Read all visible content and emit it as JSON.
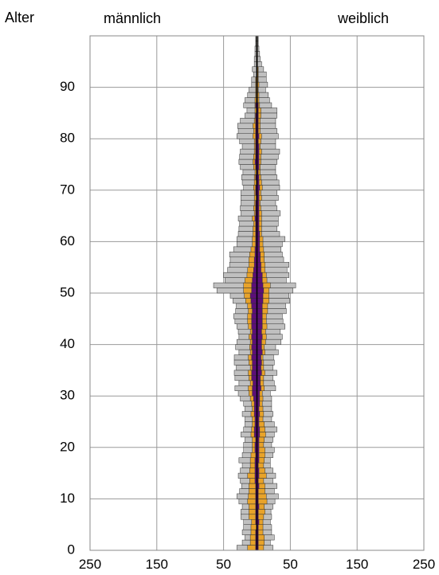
{
  "chart_data": {
    "type": "population-pyramid",
    "y_title": "Alter",
    "left_title": "männlich",
    "right_title": "weiblich",
    "x_tick_labels": [
      "250",
      "150",
      "50",
      "50",
      "150",
      "250"
    ],
    "y_tick_labels": [
      "0",
      "10",
      "20",
      "30",
      "40",
      "50",
      "60",
      "70",
      "80",
      "90"
    ],
    "xlim": [
      -250,
      250
    ],
    "ylim": [
      0,
      100
    ],
    "x_gridlines": [
      -250,
      -150,
      -50,
      0,
      50,
      150,
      250
    ],
    "y_gridlines": [
      0,
      10,
      20,
      30,
      40,
      50,
      60,
      70,
      80,
      90,
      100
    ],
    "grid": true,
    "colors": {
      "total": "#c0c0c0",
      "middle": "#e8a32a",
      "inner": "#5b0f78",
      "outline": "#333333"
    },
    "ages": [
      0,
      1,
      2,
      3,
      4,
      5,
      6,
      7,
      8,
      9,
      10,
      11,
      12,
      13,
      14,
      15,
      16,
      17,
      18,
      19,
      20,
      21,
      22,
      23,
      24,
      25,
      26,
      27,
      28,
      29,
      30,
      31,
      32,
      33,
      34,
      35,
      36,
      37,
      38,
      39,
      40,
      41,
      42,
      43,
      44,
      45,
      46,
      47,
      48,
      49,
      50,
      51,
      52,
      53,
      54,
      55,
      56,
      57,
      58,
      59,
      60,
      61,
      62,
      63,
      64,
      65,
      66,
      67,
      68,
      69,
      70,
      71,
      72,
      73,
      74,
      75,
      76,
      77,
      78,
      79,
      80,
      81,
      82,
      83,
      84,
      85,
      86,
      87,
      88,
      89,
      90,
      91,
      92,
      93,
      94,
      95,
      96,
      97,
      98,
      99
    ],
    "series": [
      {
        "side": "male",
        "outer": [
          30,
          22,
          18,
          22,
          20,
          20,
          24,
          24,
          22,
          27,
          30,
          26,
          23,
          25,
          28,
          25,
          22,
          27,
          22,
          20,
          20,
          18,
          24,
          20,
          18,
          18,
          22,
          18,
          20,
          25,
          28,
          33,
          27,
          33,
          34,
          31,
          34,
          34,
          27,
          32,
          30,
          27,
          28,
          30,
          33,
          35,
          32,
          31,
          36,
          40,
          60,
          65,
          48,
          50,
          44,
          41,
          40,
          41,
          35,
          30,
          30,
          28,
          27,
          26,
          28,
          24,
          25,
          24,
          24,
          24,
          20,
          22,
          23,
          21,
          25,
          27,
          26,
          25,
          22,
          26,
          30,
          28,
          29,
          25,
          18,
          15,
          20,
          18,
          14,
          12,
          8,
          8,
          5,
          7,
          4,
          4,
          3,
          3,
          2,
          2
        ],
        "middle": [
          14,
          10,
          10,
          9,
          9,
          8,
          12,
          12,
          12,
          14,
          13,
          12,
          12,
          11,
          14,
          11,
          10,
          10,
          9,
          7,
          7,
          7,
          9,
          8,
          7,
          7,
          9,
          7,
          8,
          10,
          12,
          13,
          10,
          12,
          13,
          10,
          12,
          13,
          10,
          11,
          10,
          12,
          10,
          13,
          14,
          14,
          13,
          14,
          17,
          19,
          20,
          20,
          18,
          15,
          14,
          12,
          12,
          11,
          9,
          7,
          7,
          6,
          6,
          5,
          7,
          4,
          5,
          4,
          4,
          4,
          5,
          4,
          4,
          3,
          5,
          6,
          5,
          4,
          4,
          4,
          6,
          5,
          6,
          4,
          3,
          3,
          3,
          3,
          2,
          2,
          2,
          2,
          1,
          1,
          1,
          1,
          1,
          1,
          1,
          1
        ],
        "inner": [
          2,
          2,
          2,
          2,
          1,
          2,
          2,
          2,
          2,
          2,
          2,
          2,
          2,
          3,
          3,
          3,
          3,
          3,
          2,
          3,
          3,
          2,
          4,
          4,
          3,
          3,
          4,
          4,
          4,
          5,
          7,
          7,
          6,
          8,
          8,
          7,
          7,
          8,
          7,
          8,
          7,
          8,
          7,
          8,
          8,
          8,
          7,
          8,
          9,
          10,
          8,
          8,
          7,
          6,
          5,
          4,
          4,
          3,
          3,
          2,
          2,
          2,
          2,
          2,
          3,
          2,
          2,
          2,
          1,
          2,
          2,
          1,
          2,
          1,
          2,
          3,
          2,
          2,
          2,
          2,
          2,
          2,
          2,
          2,
          2,
          1,
          2,
          1,
          1,
          1,
          1,
          1,
          0,
          0,
          0,
          0,
          0,
          0,
          0,
          0
        ]
      },
      {
        "side": "female",
        "outer": [
          24,
          20,
          26,
          22,
          22,
          20,
          22,
          21,
          24,
          27,
          32,
          26,
          30,
          24,
          28,
          24,
          20,
          20,
          24,
          26,
          22,
          24,
          26,
          30,
          26,
          22,
          24,
          22,
          22,
          22,
          20,
          28,
          26,
          24,
          30,
          24,
          26,
          25,
          32,
          28,
          36,
          38,
          35,
          42,
          39,
          38,
          44,
          43,
          49,
          48,
          54,
          58,
          44,
          48,
          45,
          48,
          40,
          38,
          36,
          38,
          42,
          34,
          30,
          32,
          32,
          35,
          30,
          28,
          32,
          30,
          34,
          33,
          30,
          28,
          28,
          30,
          32,
          34,
          28,
          28,
          32,
          30,
          28,
          28,
          30,
          30,
          22,
          19,
          17,
          13,
          16,
          14,
          14,
          10,
          7,
          5,
          4,
          3,
          2,
          2
        ],
        "middle": [
          10,
          11,
          11,
          9,
          9,
          9,
          10,
          12,
          11,
          15,
          14,
          12,
          12,
          10,
          14,
          12,
          10,
          11,
          12,
          12,
          10,
          11,
          13,
          12,
          11,
          9,
          10,
          9,
          8,
          9,
          8,
          11,
          10,
          10,
          12,
          10,
          10,
          9,
          12,
          11,
          13,
          14,
          13,
          15,
          14,
          14,
          16,
          16,
          18,
          18,
          18,
          20,
          15,
          14,
          12,
          12,
          11,
          11,
          10,
          9,
          9,
          7,
          7,
          7,
          7,
          7,
          6,
          5,
          7,
          6,
          8,
          7,
          6,
          5,
          5,
          6,
          6,
          7,
          5,
          6,
          7,
          5,
          5,
          5,
          6,
          6,
          4,
          3,
          3,
          2,
          3,
          2,
          2,
          2,
          1,
          1,
          1,
          1,
          1,
          1
        ],
        "inner": [
          2,
          2,
          2,
          2,
          2,
          3,
          2,
          2,
          3,
          2,
          2,
          2,
          3,
          2,
          3,
          3,
          2,
          3,
          3,
          3,
          3,
          3,
          4,
          4,
          3,
          3,
          4,
          3,
          4,
          4,
          4,
          6,
          5,
          5,
          7,
          6,
          7,
          6,
          8,
          7,
          7,
          8,
          7,
          8,
          8,
          8,
          8,
          8,
          9,
          9,
          10,
          9,
          8,
          8,
          6,
          6,
          5,
          5,
          4,
          4,
          4,
          4,
          3,
          3,
          3,
          3,
          3,
          3,
          3,
          3,
          4,
          3,
          3,
          2,
          3,
          3,
          3,
          3,
          3,
          2,
          3,
          2,
          2,
          2,
          2,
          2,
          2,
          1,
          1,
          1,
          1,
          1,
          1,
          1,
          0,
          0,
          0,
          0,
          0,
          0
        ]
      }
    ]
  }
}
